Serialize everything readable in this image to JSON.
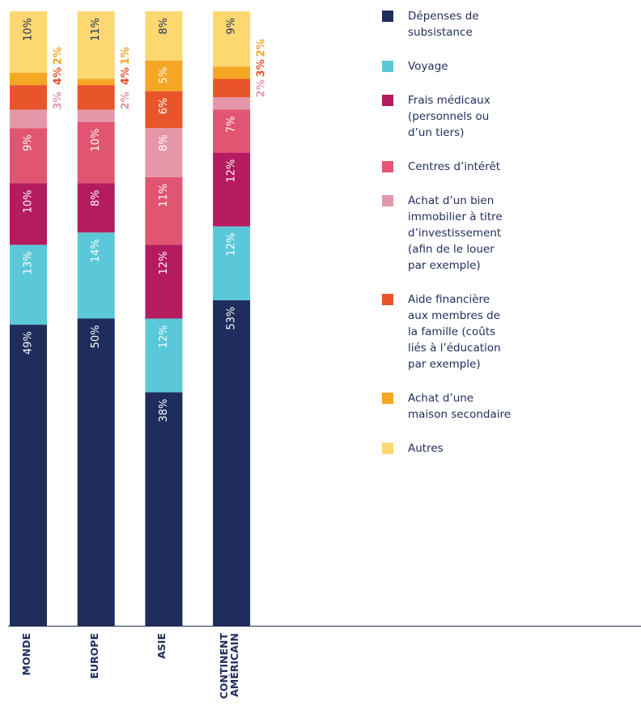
{
  "chart_data": {
    "type": "stacked_bar",
    "categories": [
      "MONDE",
      "EUROPE",
      "ASIE",
      "CONTINENT AMÉRICAIN"
    ],
    "ylim": [
      0,
      100
    ],
    "series": [
      {
        "name": "Dépenses de subsistance",
        "color": "#1f2d5c",
        "values": [
          49,
          50,
          38,
          53
        ],
        "value_labels": [
          "49%",
          "50%",
          "38%",
          "53%"
        ]
      },
      {
        "name": "Voyage",
        "color": "#5ac8d8",
        "values": [
          13,
          14,
          12,
          12
        ],
        "value_labels": [
          "13%",
          "14%",
          "12%",
          "12%"
        ]
      },
      {
        "name": "Frais médicaux (personnels ou d’un tiers)",
        "color": "#b51b5f",
        "values": [
          10,
          8,
          12,
          12
        ],
        "value_labels": [
          "10%",
          "8%",
          "12%",
          "12%"
        ]
      },
      {
        "name": "Centres d’intérêt",
        "color": "#e15570",
        "values": [
          9,
          10,
          11,
          7
        ],
        "value_labels": [
          "9%",
          "10%",
          "11%",
          "7%"
        ]
      },
      {
        "name": "Achat d’un bien immobilier à titre d’investissement (afin de le louer par exemple)",
        "color": "#e597a9",
        "values": [
          3,
          2,
          8,
          2
        ],
        "value_labels": [
          "3%",
          "2%",
          "8%",
          "2%"
        ]
      },
      {
        "name": "Aide financière aux membres de la famille (coûts liés à l’éducation par exemple)",
        "color": "#e9552b",
        "values": [
          4,
          4,
          6,
          3
        ],
        "value_labels": [
          "4%",
          "4%",
          "6%",
          "3%"
        ]
      },
      {
        "name": "Achat d’une maison secondaire",
        "color": "#f5a623",
        "values": [
          2,
          1,
          5,
          2
        ],
        "value_labels": [
          "2%",
          "1%",
          "5%",
          "2%"
        ]
      },
      {
        "name": "Autres",
        "color": "#fdd871",
        "values": [
          10,
          11,
          8,
          9
        ],
        "value_labels": [
          "10%",
          "11%",
          "8%",
          "9%"
        ]
      }
    ]
  }
}
